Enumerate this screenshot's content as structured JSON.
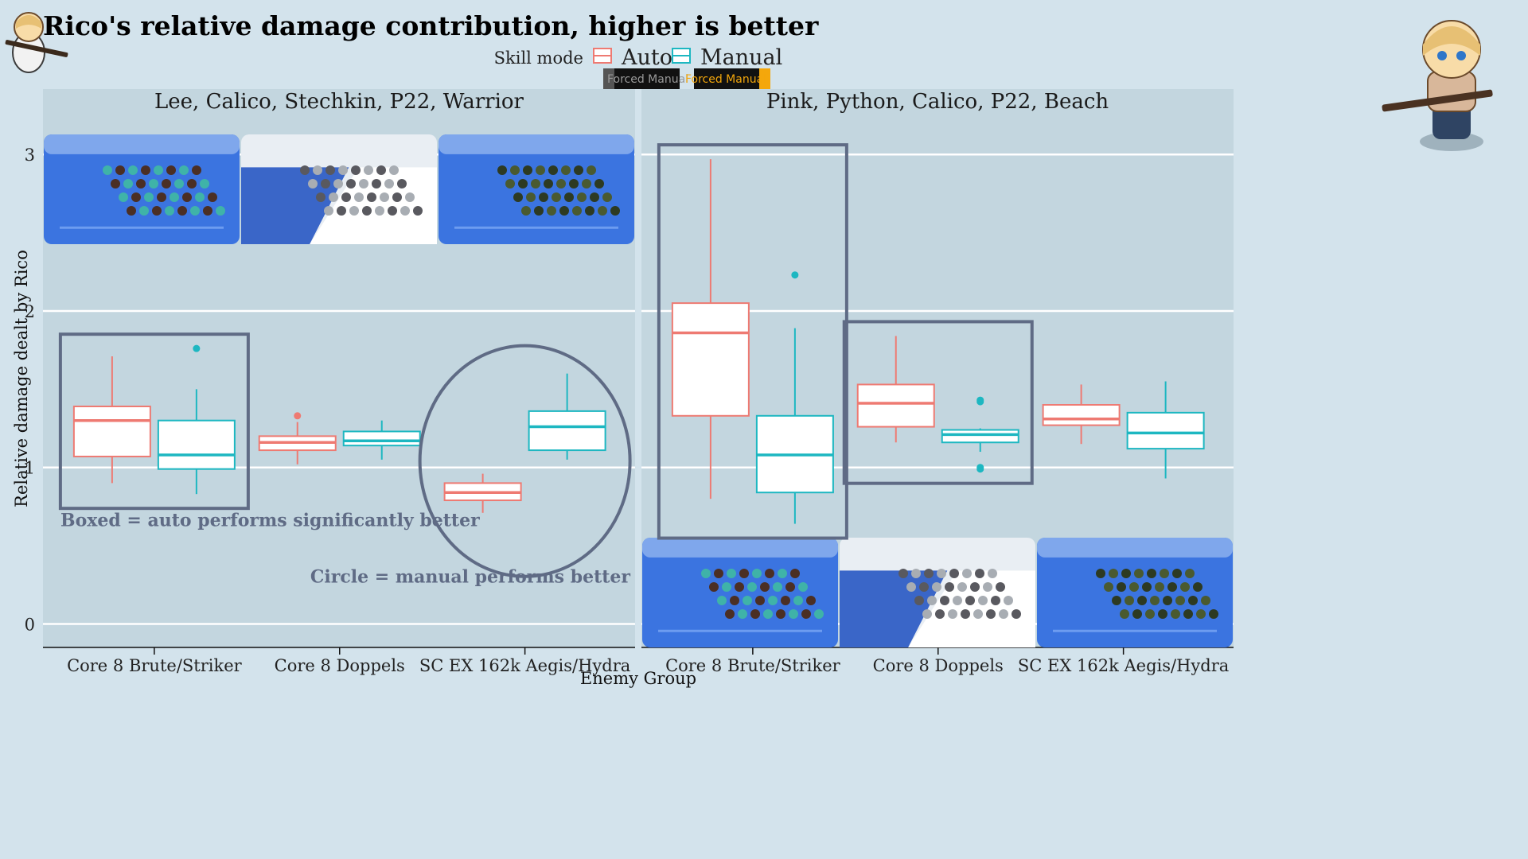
{
  "title": "Rico's relative damage contribution, higher is better",
  "legend": {
    "title": "Skill mode",
    "items": [
      {
        "label": "Auto",
        "color": "#ee7a72"
      },
      {
        "label": "Manual",
        "color": "#1db7c1"
      }
    ],
    "badges": [
      "Forced Manual",
      "Forced Manual"
    ]
  },
  "annotations": {
    "boxed": "Boxed = auto performs significantly better",
    "circle": "Circle = manual performs better"
  },
  "colors": {
    "background": "#d3e3ec",
    "panel": "#c3d6df",
    "grid": "#ffffff",
    "annotation": "#5f6b85",
    "auto": "#ee7a72",
    "manual": "#1db7c1"
  },
  "chart_data": {
    "type": "boxplot",
    "xlabel": "Enemy Group",
    "ylabel": "Relative damage dealt by Rico",
    "ylim": [
      -0.15,
      3.25
    ],
    "yticks": [
      0,
      1,
      2,
      3
    ],
    "legend_position": "top",
    "grid": true,
    "categories": [
      "Core 8 Brute/Striker",
      "Core 8 Doppels",
      "SC EX 162k Aegis/Hydra"
    ],
    "facets": [
      {
        "label": "Lee, Calico, Stechkin, P22, Warrior",
        "groups": [
          {
            "category": "Core 8 Brute/Striker",
            "marked": "box",
            "auto": {
              "min": 0.9,
              "q1": 1.07,
              "median": 1.3,
              "q3": 1.39,
              "max": 1.71,
              "outliers": []
            },
            "manual": {
              "min": 0.83,
              "q1": 0.99,
              "median": 1.08,
              "q3": 1.3,
              "max": 1.5,
              "outliers": [
                1.76
              ]
            }
          },
          {
            "category": "Core 8 Doppels",
            "auto": {
              "min": 1.02,
              "q1": 1.11,
              "median": 1.16,
              "q3": 1.2,
              "max": 1.29,
              "outliers": [
                1.33
              ]
            },
            "manual": {
              "min": 1.05,
              "q1": 1.14,
              "median": 1.17,
              "q3": 1.23,
              "max": 1.3,
              "outliers": []
            },
            "marked": ""
          },
          {
            "category": "SC EX 162k Aegis/Hydra",
            "marked": "circle",
            "auto": {
              "min": 0.71,
              "q1": 0.79,
              "median": 0.84,
              "q3": 0.9,
              "max": 0.96,
              "outliers": []
            },
            "manual": {
              "min": 1.05,
              "q1": 1.11,
              "median": 1.26,
              "q3": 1.36,
              "max": 1.6,
              "outliers": []
            }
          }
        ]
      },
      {
        "label": "Pink, Python, Calico, P22, Beach",
        "groups": [
          {
            "category": "Core 8 Brute/Striker",
            "marked": "box",
            "auto": {
              "min": 0.8,
              "q1": 1.33,
              "median": 1.86,
              "q3": 2.05,
              "max": 2.97,
              "outliers": []
            },
            "manual": {
              "min": 0.64,
              "q1": 0.84,
              "median": 1.08,
              "q3": 1.33,
              "max": 1.89,
              "outliers": [
                2.23
              ]
            }
          },
          {
            "category": "Core 8 Doppels",
            "marked": "box",
            "auto": {
              "min": 1.16,
              "q1": 1.26,
              "median": 1.41,
              "q3": 1.53,
              "max": 1.84,
              "outliers": []
            },
            "manual": {
              "min": 1.1,
              "q1": 1.16,
              "median": 1.21,
              "q3": 1.24,
              "max": 1.25,
              "outliers": [
                1.42,
                1.43,
                0.99,
                1.0
              ]
            }
          },
          {
            "category": "SC EX 162k Aegis/Hydra",
            "auto": {
              "min": 1.15,
              "q1": 1.27,
              "median": 1.31,
              "q3": 1.4,
              "max": 1.53,
              "outliers": []
            },
            "manual": {
              "min": 0.93,
              "q1": 1.12,
              "median": 1.22,
              "q3": 1.35,
              "max": 1.55,
              "outliers": []
            },
            "marked": ""
          }
        ]
      }
    ]
  }
}
